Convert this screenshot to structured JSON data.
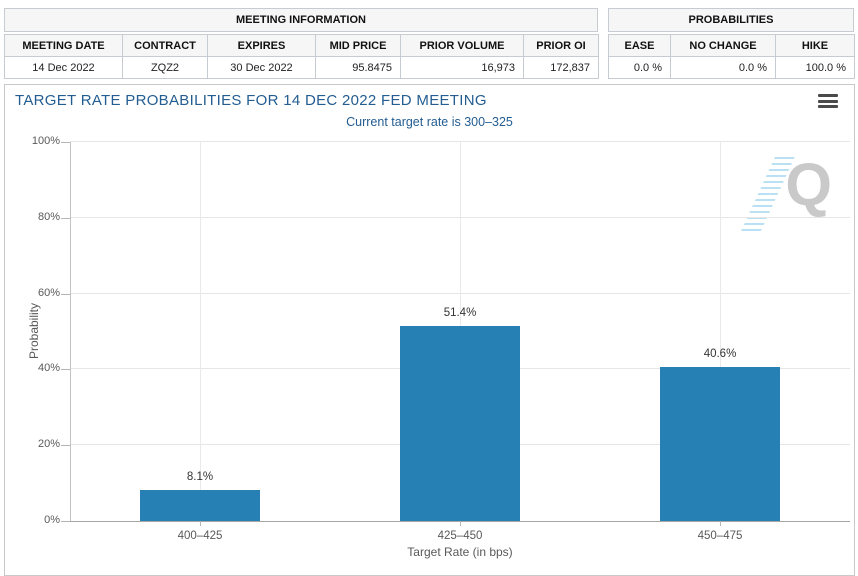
{
  "meeting_info": {
    "title": "MEETING INFORMATION",
    "columns": [
      "MEETING DATE",
      "CONTRACT",
      "EXPIRES",
      "MID PRICE",
      "PRIOR VOLUME",
      "PRIOR OI"
    ],
    "values": [
      "14 Dec 2022",
      "ZQZ2",
      "30 Dec 2022",
      "95.8475",
      "16,973",
      "172,837"
    ]
  },
  "probabilities": {
    "title": "PROBABILITIES",
    "columns": [
      "EASE",
      "NO CHANGE",
      "HIKE"
    ],
    "values": [
      "0.0 %",
      "0.0 %",
      "100.0 %"
    ]
  },
  "chart": {
    "title": "TARGET RATE PROBABILITIES FOR 14 DEC 2022 FED MEETING",
    "subtitle": "Current target rate is 300–325",
    "watermark_letter": "Q"
  },
  "chart_data": {
    "type": "bar",
    "title": "TARGET RATE PROBABILITIES FOR 14 DEC 2022 FED MEETING",
    "subtitle": "Current target rate is 300–325",
    "categories": [
      "400–425",
      "425–450",
      "450–475"
    ],
    "values": [
      8.1,
      51.4,
      40.6
    ],
    "value_labels": [
      "8.1%",
      "51.4%",
      "40.6%"
    ],
    "xlabel": "Target Rate (in bps)",
    "ylabel": "Probability",
    "ylim": [
      0,
      100
    ],
    "yticks": [
      {
        "label": "0%",
        "pct": 0
      },
      {
        "label": "20%",
        "pct": 20
      },
      {
        "label": "40%",
        "pct": 40
      },
      {
        "label": "60%",
        "pct": 60
      },
      {
        "label": "80%",
        "pct": 80
      },
      {
        "label": "100%",
        "pct": 100
      }
    ],
    "grid": true,
    "legend": false,
    "bar_color": "#2680b4"
  },
  "colors": {
    "title_blue": "#235d91",
    "bar_blue": "#2680b4",
    "table_border": "#c6ccd2",
    "header_bg": "#f6f6f6"
  }
}
